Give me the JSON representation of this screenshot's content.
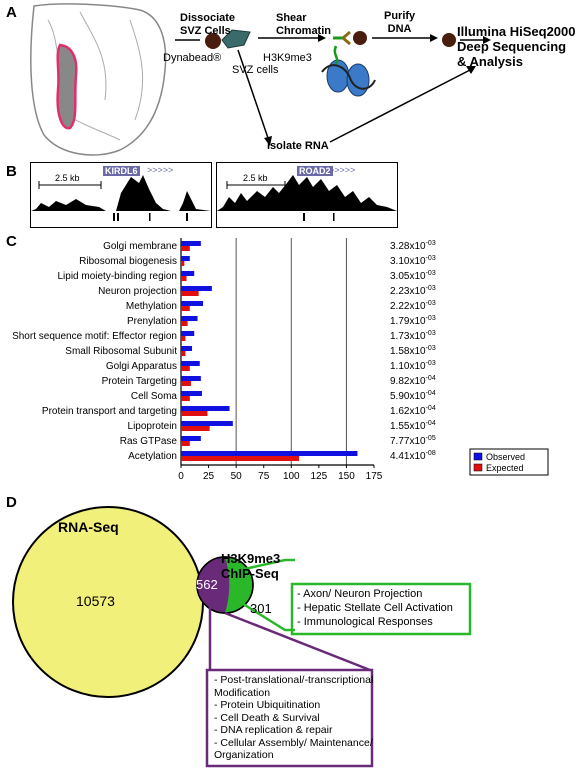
{
  "panels": {
    "a": "A",
    "b": "B",
    "c": "C",
    "d": "D"
  },
  "panel_a": {
    "step1": [
      "Dissociate",
      "SVZ Cells"
    ],
    "dynabead": "Dynabead®",
    "svz_cells": "SVZ cells",
    "step2": [
      "Shear",
      "Chromatin"
    ],
    "antibody": "H3K9me3",
    "step3": [
      "Purify",
      "DNA"
    ],
    "result": [
      "Illumina HiSeq2000",
      "Deep Sequencing",
      "& Analysis"
    ],
    "isolate_rna": "Isolate RNA"
  },
  "panel_b": {
    "track1": {
      "scale": "2.5 kb",
      "gene": "KIRDL6",
      "arrows": ">>>>>"
    },
    "track2": {
      "scale": "2.5 kb",
      "gene": "ROAD2",
      "arrows": ">>>>>"
    }
  },
  "chart_data": {
    "type": "bar",
    "orientation": "horizontal",
    "categories": [
      "Golgi membrane",
      "Ribosomal biogenesis",
      "Lipid moiety-binding region",
      "Neuron projection",
      "Methylation",
      "Prenylation",
      "Short sequence motif: Effector region",
      "Small Ribosomal Subunit",
      "Golgi Apparatus",
      "Protein Targeting",
      "Cell Soma",
      "Protein transport and targeting",
      "Lipoprotein",
      "Ras GTPase",
      "Acetylation"
    ],
    "series": [
      {
        "name": "Observed",
        "color": "#1010e0",
        "values": [
          18,
          8,
          12,
          28,
          20,
          15,
          12,
          10,
          17,
          18,
          19,
          44,
          47,
          18,
          160
        ]
      },
      {
        "name": "Expected",
        "color": "#e01010",
        "values": [
          8,
          3,
          5,
          16,
          8,
          6,
          4,
          4,
          8,
          9,
          8,
          24,
          26,
          8,
          107
        ]
      }
    ],
    "pvalues": [
      {
        "m": "3.28x10",
        "e": "-03"
      },
      {
        "m": "3.10x10",
        "e": "-03"
      },
      {
        "m": "3.05x10",
        "e": "-03"
      },
      {
        "m": "2.23x10",
        "e": "-03"
      },
      {
        "m": "2.22x10",
        "e": "-03"
      },
      {
        "m": "1.79x10",
        "e": "-03"
      },
      {
        "m": "1.73x10",
        "e": "-03"
      },
      {
        "m": "1.58x10",
        "e": "-03"
      },
      {
        "m": "1.10x10",
        "e": "-03"
      },
      {
        "m": "9.82x10",
        "e": "-04"
      },
      {
        "m": "5.90x10",
        "e": "-04"
      },
      {
        "m": "1.62x10",
        "e": "-04"
      },
      {
        "m": "1.55x10",
        "e": "-04"
      },
      {
        "m": "7.77x10",
        "e": "-05"
      },
      {
        "m": "4.41x10",
        "e": "-08"
      }
    ],
    "xlim": [
      0,
      175
    ],
    "xticks": [
      "0",
      "25",
      "50",
      "75",
      "100",
      "125",
      "150",
      "175"
    ],
    "gridlines": [
      50,
      100,
      150
    ],
    "legend_position": "bottom-right"
  },
  "panel_d": {
    "rnaseq_title": "RNA-Seq",
    "chip_title": [
      "H3K9me3",
      "ChIP-Seq"
    ],
    "rnaseq_only": "10573",
    "overlap": "562",
    "chip_only": "301",
    "colors": {
      "rnaseq": "#f0f07a",
      "overlap": "#6a2a7a",
      "chip": "#2ab82a"
    },
    "green_box": [
      "- Axon/ Neuron Projection",
      "- Hepatic Stellate Cell Activation",
      "- Immunological Responses"
    ],
    "purple_box": [
      "- Post-translational/-transcriptional",
      "Modification",
      "- Protein Ubiquitination",
      "- Cell Death & Survival",
      "- DNA replication & repair",
      "- Cellular Assembly/ Maintenance/",
      "Organization"
    ]
  }
}
